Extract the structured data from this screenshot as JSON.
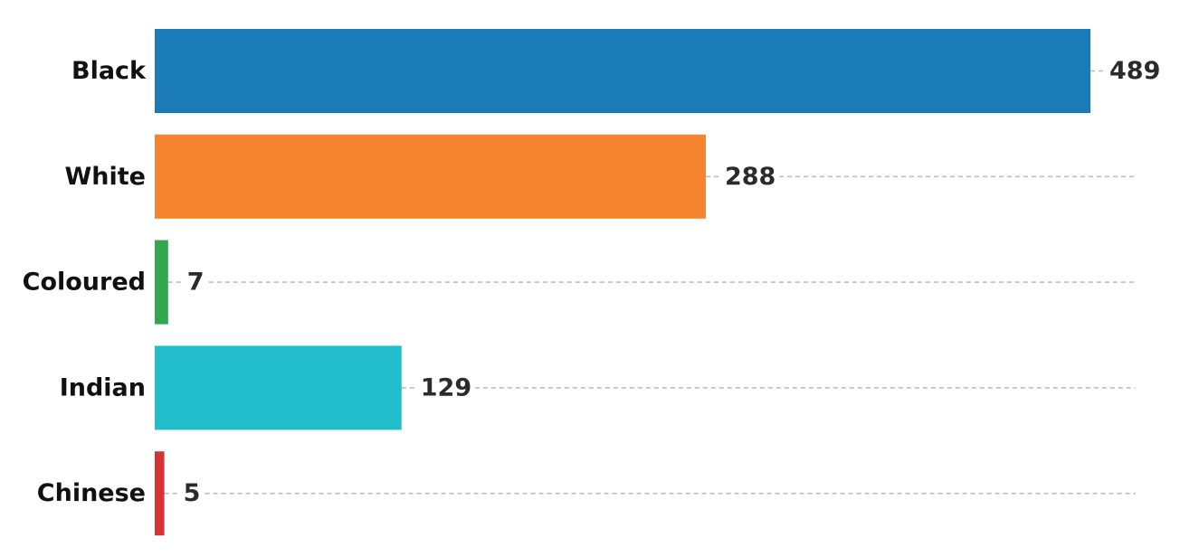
{
  "chart_data": {
    "type": "bar",
    "orientation": "horizontal",
    "categories": [
      "Black",
      "White",
      "Coloured",
      "Indian",
      "Chinese"
    ],
    "values": [
      489,
      288,
      7,
      129,
      5
    ],
    "colors": [
      "#1a7bb6",
      "#f58430",
      "#2fa84f",
      "#21bdca",
      "#d63434"
    ],
    "title": "",
    "xlabel": "",
    "ylabel": "",
    "xlim": [
      0,
      489
    ],
    "grid": "x-dashed",
    "legend": "none",
    "data_labels": true
  }
}
